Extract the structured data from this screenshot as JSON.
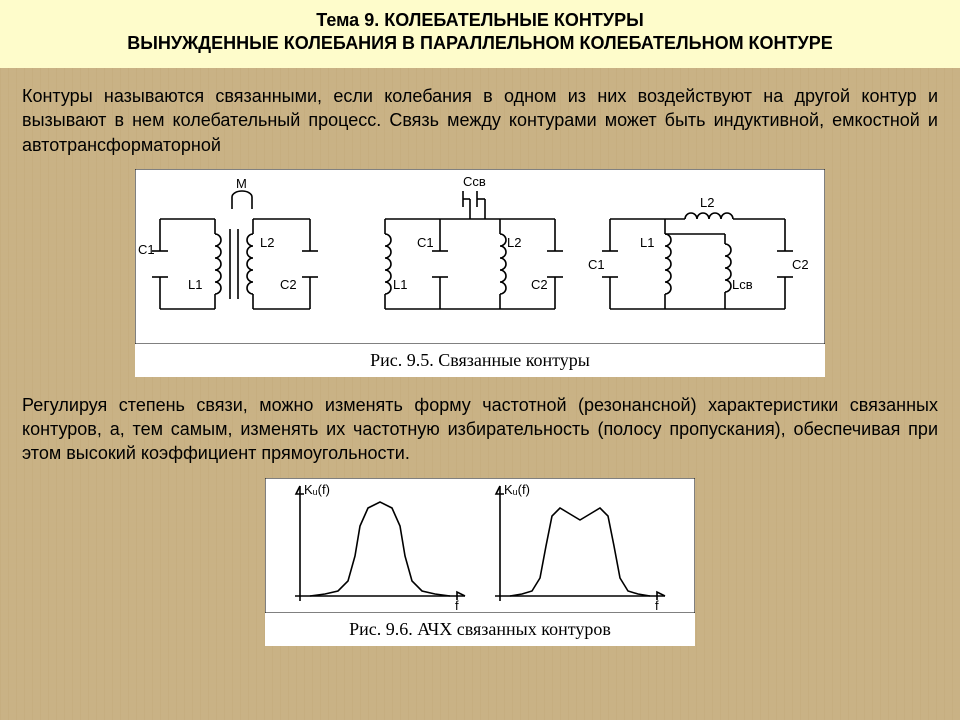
{
  "header": {
    "line1": "Тема 9. КОЛЕБАТЕЛЬНЫЕ КОНТУРЫ",
    "line2": "ВЫНУЖДЕННЫЕ КОЛЕБАНИЯ В ПАРАЛЛЕЛЬНОМ КОЛЕБАТЕЛЬНОМ КОНТУРЕ"
  },
  "para1": "Контуры называются связанными, если колебания в одном из них воздействуют на другой контур и вызывают в нем колебательный процесс. Связь между контурами может быть индуктивной, емкостной и автотрансформаторной",
  "fig1": {
    "caption": "Рис. 9.5. Связанные контуры",
    "labels": {
      "M": "M",
      "C1": "C1",
      "L1": "L1",
      "L2": "L2",
      "C2": "C2",
      "Csv": "Cсв",
      "Lsv": "Lсв"
    },
    "stroke_width": 1.6,
    "bg": "#ffffff"
  },
  "para2": "Регулируя степень связи, можно изменять форму частотной (резонансной) характеристики связанных контуров, а, тем самым, изменять их частотную избирательность (полосу пропускания), обеспечивая при этом высокий коэффициент прямоугольности.",
  "fig2": {
    "caption": "Рис. 9.6. АЧХ связанных контуров",
    "ylabel": "Kᵤ(f)",
    "xlabel": "f",
    "curve1_pts": [
      [
        20,
        110
      ],
      [
        35,
        108
      ],
      [
        48,
        105
      ],
      [
        58,
        95
      ],
      [
        65,
        70
      ],
      [
        70,
        40
      ],
      [
        78,
        22
      ],
      [
        90,
        16
      ],
      [
        102,
        22
      ],
      [
        110,
        40
      ],
      [
        115,
        70
      ],
      [
        122,
        95
      ],
      [
        132,
        105
      ],
      [
        145,
        108
      ],
      [
        160,
        110
      ]
    ],
    "curve2_pts": [
      [
        20,
        110
      ],
      [
        32,
        108
      ],
      [
        42,
        105
      ],
      [
        50,
        92
      ],
      [
        56,
        60
      ],
      [
        62,
        30
      ],
      [
        70,
        22
      ],
      [
        80,
        28
      ],
      [
        90,
        34
      ],
      [
        100,
        28
      ],
      [
        110,
        22
      ],
      [
        118,
        30
      ],
      [
        124,
        60
      ],
      [
        130,
        92
      ],
      [
        138,
        105
      ],
      [
        148,
        108
      ],
      [
        160,
        110
      ]
    ],
    "stroke_width": 1.6,
    "bg": "#ffffff"
  },
  "colors": {
    "header_bg": "#fefccb",
    "page_bg": "#c9b285",
    "text": "#000000"
  }
}
